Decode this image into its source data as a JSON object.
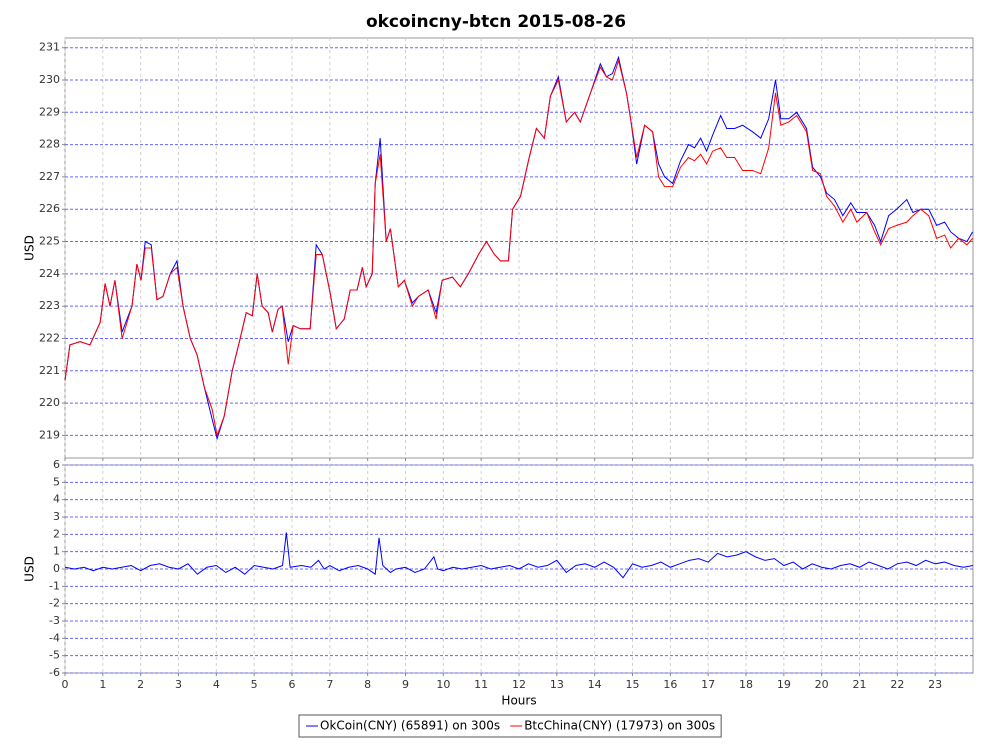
{
  "chart_data": [
    {
      "type": "line",
      "title": "okcoincny-btcn 2015-08-26",
      "y_label": "USD",
      "grid": true,
      "legend": "bottom",
      "xlim": [
        0,
        24
      ],
      "xticks": [
        0,
        1,
        2,
        3,
        4,
        5,
        6,
        7,
        8,
        9,
        10,
        11,
        12,
        13,
        14,
        15,
        16,
        17,
        18,
        19,
        20,
        21,
        22,
        23
      ],
      "ylim": [
        218.3,
        231.3
      ],
      "yticks": [
        219,
        220,
        221,
        222,
        223,
        224,
        225,
        226,
        227,
        228,
        229,
        230,
        231
      ],
      "x": [
        0,
        0.13,
        0.4,
        0.66,
        0.93,
        1.06,
        1.19,
        1.32,
        1.51,
        1.77,
        1.9,
        2.01,
        2.12,
        2.28,
        2.43,
        2.59,
        2.78,
        2.96,
        3.12,
        3.31,
        3.49,
        3.68,
        3.89,
        4.02,
        4.21,
        4.42,
        4.63,
        4.79,
        4.95,
        5.08,
        5.21,
        5.37,
        5.48,
        5.63,
        5.74,
        5.9,
        6.03,
        6.22,
        6.48,
        6.64,
        6.8,
        7.01,
        7.17,
        7.38,
        7.54,
        7.72,
        7.86,
        7.96,
        8.12,
        8.2,
        8.33,
        8.49,
        8.6,
        8.81,
        8.97,
        9.18,
        9.34,
        9.6,
        9.81,
        9.97,
        10.24,
        10.45,
        10.66,
        10.93,
        11.14,
        11.35,
        11.51,
        11.72,
        11.83,
        12.04,
        12.25,
        12.46,
        12.67,
        12.83,
        13.04,
        13.25,
        13.47,
        13.62,
        13.89,
        14.15,
        14.31,
        14.47,
        14.63,
        14.84,
        14.95,
        15.11,
        15.32,
        15.53,
        15.69,
        15.85,
        16.06,
        16.27,
        16.48,
        16.64,
        16.8,
        16.96,
        17.12,
        17.33,
        17.49,
        17.7,
        17.91,
        18.17,
        18.39,
        18.6,
        18.78,
        18.92,
        19.13,
        19.34,
        19.6,
        19.76,
        19.97,
        20.13,
        20.34,
        20.56,
        20.77,
        20.93,
        21.19,
        21.4,
        21.56,
        21.77,
        21.98,
        22.25,
        22.41,
        22.62,
        22.83,
        23.04,
        23.25,
        23.41,
        23.62,
        23.84,
        23.99
      ],
      "series": [
        {
          "name": "OkCoin(CNY) (65891) on 300s",
          "color": "#0000ff",
          "values": [
            220.7,
            221.8,
            221.9,
            221.8,
            222.5,
            223.7,
            223.0,
            223.8,
            222.2,
            223.0,
            224.3,
            223.8,
            225.0,
            224.9,
            223.2,
            223.3,
            224.0,
            224.4,
            223.0,
            222.0,
            221.5,
            220.5,
            219.5,
            218.9,
            219.6,
            221.0,
            222.0,
            222.8,
            222.7,
            224.0,
            223.0,
            222.8,
            222.2,
            222.9,
            223.0,
            221.9,
            222.4,
            222.3,
            222.3,
            224.9,
            224.6,
            223.4,
            222.3,
            222.6,
            223.5,
            223.5,
            224.2,
            223.6,
            224.0,
            226.8,
            228.2,
            225.0,
            225.4,
            223.6,
            223.8,
            223.1,
            223.3,
            223.5,
            222.8,
            223.8,
            223.9,
            223.6,
            224.0,
            224.6,
            225.0,
            224.6,
            224.4,
            224.4,
            226.0,
            226.4,
            227.5,
            228.5,
            228.2,
            229.5,
            230.1,
            228.7,
            229.0,
            228.7,
            229.6,
            230.5,
            230.1,
            230.2,
            230.7,
            229.6,
            228.8,
            227.4,
            228.6,
            228.4,
            227.4,
            227.0,
            226.8,
            227.5,
            228.0,
            227.9,
            228.2,
            227.8,
            228.3,
            228.9,
            228.5,
            228.5,
            228.6,
            228.4,
            228.2,
            228.8,
            230.0,
            228.8,
            228.8,
            229.0,
            228.5,
            227.3,
            227.0,
            226.5,
            226.3,
            225.8,
            226.2,
            225.9,
            225.9,
            225.5,
            225.0,
            225.8,
            226.0,
            226.3,
            225.9,
            226.0,
            226.0,
            225.5,
            225.6,
            225.3,
            225.1,
            225.0,
            225.3
          ]
        },
        {
          "name": "BtcChina(CNY) (17973) on 300s",
          "color": "#ff0000",
          "values": [
            220.7,
            221.8,
            221.9,
            221.8,
            222.5,
            223.7,
            223.0,
            223.8,
            222.0,
            223.0,
            224.3,
            223.8,
            224.8,
            224.8,
            223.2,
            223.3,
            224.0,
            224.2,
            223.0,
            222.0,
            221.5,
            220.5,
            219.8,
            219.0,
            219.6,
            221.0,
            222.0,
            222.8,
            222.7,
            224.0,
            223.0,
            222.8,
            222.2,
            222.9,
            223.0,
            221.2,
            222.4,
            222.3,
            222.3,
            224.6,
            224.6,
            223.4,
            222.3,
            222.6,
            223.5,
            223.5,
            224.2,
            223.6,
            224.0,
            226.8,
            227.7,
            225.0,
            225.4,
            223.6,
            223.8,
            223.0,
            223.3,
            223.5,
            222.6,
            223.8,
            223.9,
            223.6,
            224.0,
            224.6,
            225.0,
            224.6,
            224.4,
            224.4,
            226.0,
            226.4,
            227.5,
            228.5,
            228.2,
            229.5,
            230.0,
            228.7,
            229.0,
            228.7,
            229.6,
            230.4,
            230.1,
            230.0,
            230.6,
            229.6,
            228.8,
            227.6,
            228.6,
            228.4,
            227.0,
            226.7,
            226.7,
            227.3,
            227.6,
            227.5,
            227.7,
            227.4,
            227.8,
            227.9,
            227.6,
            227.6,
            227.2,
            227.2,
            227.1,
            227.9,
            229.6,
            228.6,
            228.7,
            228.9,
            228.4,
            227.2,
            227.1,
            226.4,
            226.1,
            225.6,
            226.0,
            225.6,
            225.9,
            225.3,
            224.9,
            225.4,
            225.5,
            225.6,
            225.8,
            226.0,
            225.8,
            225.1,
            225.2,
            224.8,
            225.1,
            224.9,
            225.1
          ]
        }
      ]
    },
    {
      "type": "line",
      "x_label": "Hours",
      "y_label": "USD",
      "grid": true,
      "xlim": [
        0,
        24
      ],
      "xticks": [
        0,
        1,
        2,
        3,
        4,
        5,
        6,
        7,
        8,
        9,
        10,
        11,
        12,
        13,
        14,
        15,
        16,
        17,
        18,
        19,
        20,
        21,
        22,
        23
      ],
      "ylim": [
        -6,
        6
      ],
      "yticks": [
        -6,
        -5,
        -4,
        -3,
        -2,
        -1,
        0,
        1,
        2,
        3,
        4,
        5,
        6
      ],
      "x": [
        0,
        0.25,
        0.5,
        0.75,
        1,
        1.25,
        1.5,
        1.75,
        2,
        2.25,
        2.5,
        2.75,
        3,
        3.25,
        3.5,
        3.75,
        4,
        4.25,
        4.5,
        4.75,
        5,
        5.25,
        5.5,
        5.75,
        5.85,
        5.95,
        6.25,
        6.5,
        6.7,
        6.85,
        7,
        7.25,
        7.5,
        7.75,
        8,
        8.2,
        8.3,
        8.4,
        8.6,
        8.75,
        9,
        9.25,
        9.5,
        9.75,
        9.85,
        10,
        10.25,
        10.5,
        10.75,
        11,
        11.25,
        11.5,
        11.75,
        12,
        12.25,
        12.5,
        12.75,
        13,
        13.25,
        13.5,
        13.75,
        14,
        14.25,
        14.5,
        14.75,
        15,
        15.25,
        15.5,
        15.75,
        16,
        16.25,
        16.5,
        16.75,
        17,
        17.25,
        17.5,
        17.75,
        18,
        18.25,
        18.5,
        18.75,
        19,
        19.25,
        19.5,
        19.75,
        20,
        20.25,
        20.5,
        20.75,
        21,
        21.25,
        21.5,
        21.75,
        22,
        22.25,
        22.5,
        22.75,
        23,
        23.25,
        23.5,
        23.75,
        24
      ],
      "series": [
        {
          "color": "#0000ff",
          "values": [
            0.1,
            0,
            0.1,
            -0.1,
            0.1,
            0,
            0.1,
            0.2,
            -0.1,
            0.2,
            0.3,
            0.1,
            0,
            0.3,
            -0.3,
            0.1,
            0.2,
            -0.2,
            0.1,
            -0.3,
            0.2,
            0.1,
            0,
            0.2,
            2.1,
            0.1,
            0.2,
            0.1,
            0.5,
            0,
            0.2,
            -0.1,
            0.1,
            0.2,
            0,
            -0.3,
            1.8,
            0.2,
            -0.2,
            0,
            0.1,
            -0.2,
            0,
            0.7,
            0,
            -0.1,
            0.1,
            0,
            0.1,
            0.2,
            0,
            0.1,
            0.2,
            0,
            0.3,
            0.1,
            0.2,
            0.5,
            -0.2,
            0.2,
            0.3,
            0.1,
            0.4,
            0.1,
            -0.5,
            0.3,
            0.1,
            0.2,
            0.4,
            0.1,
            0.3,
            0.5,
            0.6,
            0.4,
            0.9,
            0.7,
            0.8,
            1.0,
            0.7,
            0.5,
            0.6,
            0.2,
            0.4,
            0,
            0.3,
            0.1,
            0,
            0.2,
            0.3,
            0.1,
            0.4,
            0.2,
            0,
            0.3,
            0.4,
            0.2,
            0.5,
            0.3,
            0.4,
            0.2,
            0.1,
            0.2
          ]
        }
      ]
    }
  ]
}
